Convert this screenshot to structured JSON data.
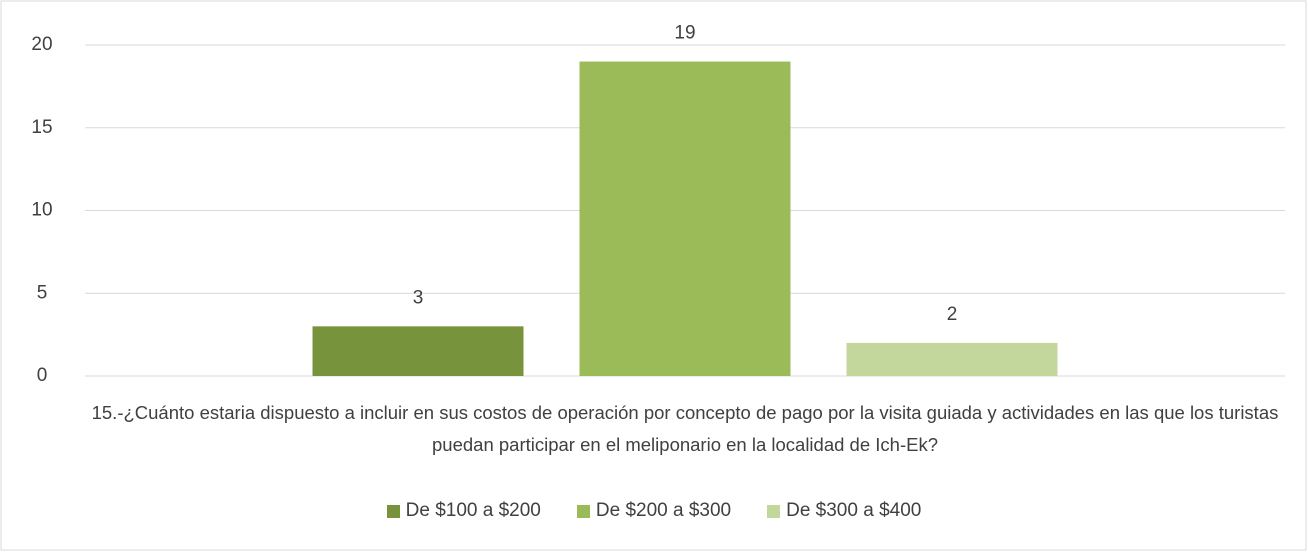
{
  "chart_data": {
    "type": "bar",
    "categories": [
      "15.-¿Cuánto estaria dispuesto a incluir en sus costos de operación por concepto de pago por la visita guiada y actividades en las que los turistas puedan participar en el meliponario en la localidad de Ich-Ek?"
    ],
    "series": [
      {
        "name": "De $100 a $200",
        "color": "#77933c",
        "values": [
          3
        ]
      },
      {
        "name": "De $200 a $300",
        "color": "#9bbb59",
        "values": [
          19
        ]
      },
      {
        "name": "De $300 a $400",
        "color": "#c3d69b",
        "values": [
          2
        ]
      }
    ],
    "ylim": [
      0,
      20
    ],
    "yticks": [
      0,
      5,
      10,
      15,
      20
    ],
    "grid": true,
    "legend": "bottom"
  }
}
